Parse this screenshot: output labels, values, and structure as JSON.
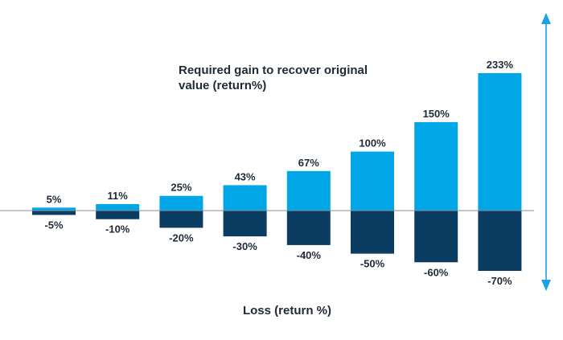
{
  "chart_data": {
    "type": "bar",
    "categories": [
      "-5%",
      "-10%",
      "-20%",
      "-30%",
      "-40%",
      "-50%",
      "-60%",
      "-70%"
    ],
    "series": [
      {
        "name": "Required gain",
        "values": [
          5,
          11,
          25,
          43,
          67,
          100,
          150,
          233
        ],
        "labels": [
          "5%",
          "11%",
          "25%",
          "43%",
          "67%",
          "100%",
          "150%",
          "233%"
        ],
        "color": "#00a6e6"
      },
      {
        "name": "Loss",
        "values": [
          -5,
          -10,
          -20,
          -30,
          -40,
          -50,
          -60,
          -70
        ],
        "labels": [
          "-5%",
          "-10%",
          "-20%",
          "-30%",
          "-40%",
          "-50%",
          "-60%",
          "-70%"
        ],
        "color": "#0b3d63"
      }
    ],
    "annotation_line1": "Required gain to recover original",
    "annotation_line2": "value (return%)",
    "xlabel": "Loss (return %)",
    "ylabel": "",
    "grid": false,
    "legend": "none",
    "axis_color": "#8a8f94",
    "arrow_color": "#1aa3e0",
    "text_color": "#1f2a36"
  }
}
